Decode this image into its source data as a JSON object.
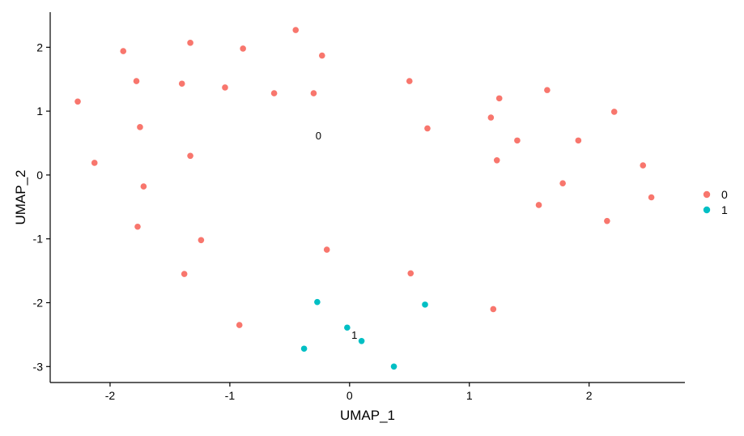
{
  "chart_data": {
    "type": "scatter",
    "title": "",
    "xlabel": "UMAP_1",
    "ylabel": "UMAP_2",
    "xlim": [
      -2.5,
      2.8
    ],
    "ylim": [
      -3.25,
      2.55
    ],
    "x_ticks": [
      -2,
      -1,
      0,
      1,
      2
    ],
    "x_tick_labels": [
      "-2",
      "-1",
      "0",
      "1",
      "2"
    ],
    "y_ticks": [
      -3,
      -2,
      -1,
      0,
      1,
      2
    ],
    "y_tick_labels": [
      "-3",
      "-2",
      "-1",
      "0",
      "1",
      "2"
    ],
    "grid": false,
    "legend_position": "right",
    "series": [
      {
        "name": "0",
        "color": "#F8766D",
        "points": [
          [
            -0.45,
            2.27
          ],
          [
            -1.33,
            2.07
          ],
          [
            -0.89,
            1.98
          ],
          [
            -1.89,
            1.94
          ],
          [
            -0.23,
            1.87
          ],
          [
            -1.78,
            1.47
          ],
          [
            -1.4,
            1.43
          ],
          [
            0.5,
            1.47
          ],
          [
            -1.04,
            1.37
          ],
          [
            -0.63,
            1.28
          ],
          [
            -0.3,
            1.28
          ],
          [
            1.65,
            1.33
          ],
          [
            1.25,
            1.2
          ],
          [
            -2.27,
            1.15
          ],
          [
            2.21,
            0.99
          ],
          [
            1.18,
            0.9
          ],
          [
            -1.75,
            0.75
          ],
          [
            0.65,
            0.73
          ],
          [
            1.4,
            0.54
          ],
          [
            1.91,
            0.54
          ],
          [
            -1.33,
            0.3
          ],
          [
            1.23,
            0.23
          ],
          [
            -2.13,
            0.19
          ],
          [
            2.45,
            0.15
          ],
          [
            1.78,
            -0.13
          ],
          [
            -1.72,
            -0.18
          ],
          [
            2.52,
            -0.35
          ],
          [
            1.58,
            -0.47
          ],
          [
            2.15,
            -0.72
          ],
          [
            -1.77,
            -0.81
          ],
          [
            -1.24,
            -1.02
          ],
          [
            -0.19,
            -1.17
          ],
          [
            -1.38,
            -1.55
          ],
          [
            0.51,
            -1.54
          ],
          [
            1.2,
            -2.1
          ],
          [
            -0.92,
            -2.35
          ]
        ]
      },
      {
        "name": "1",
        "color": "#00BFC4",
        "points": [
          [
            -0.27,
            -1.99
          ],
          [
            0.63,
            -2.03
          ],
          [
            -0.02,
            -2.39
          ],
          [
            0.1,
            -2.6
          ],
          [
            -0.38,
            -2.72
          ],
          [
            0.37,
            -3.0
          ]
        ]
      }
    ],
    "annotations": [
      {
        "text": "0",
        "x": -0.26,
        "y": 0.62
      },
      {
        "text": "1",
        "x": 0.04,
        "y": -2.5
      }
    ],
    "legend": [
      {
        "label": "0",
        "color": "#F8766D"
      },
      {
        "label": "1",
        "color": "#00BFC4"
      }
    ]
  }
}
